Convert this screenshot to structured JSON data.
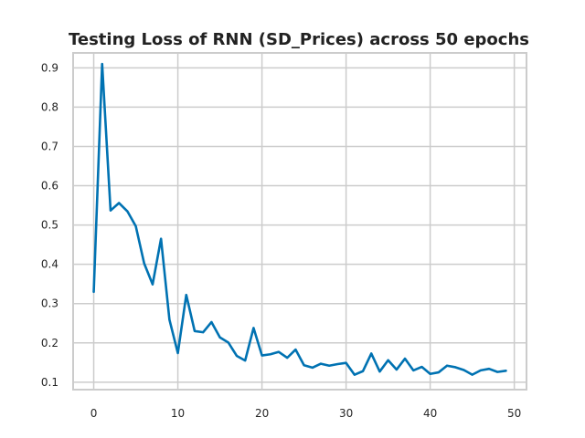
{
  "chart_data": {
    "type": "line",
    "title": "Testing Loss of RNN (SD_Prices) across 50 epochs",
    "xlabel": "",
    "ylabel": "",
    "xlim": [
      -2.45,
      51.45
    ],
    "ylim": [
      0.081,
      0.938
    ],
    "xticks": [
      0,
      10,
      20,
      30,
      40,
      50
    ],
    "yticks": [
      0.1,
      0.2,
      0.3,
      0.4,
      0.5,
      0.6,
      0.7,
      0.8,
      0.9
    ],
    "grid": true,
    "legend": "none",
    "line_color": "#0072b2",
    "series": [
      {
        "x": [
          0,
          1,
          2,
          3,
          4,
          5,
          6,
          7,
          8,
          9,
          10,
          11,
          12,
          13,
          14,
          15,
          16,
          17,
          18,
          19,
          20,
          21,
          22,
          23,
          24,
          25,
          26,
          27,
          28,
          29,
          30,
          31,
          32,
          33,
          34,
          35,
          36,
          37,
          38,
          39,
          40,
          41,
          42,
          43,
          44,
          45,
          46,
          47,
          48,
          49
        ],
        "values": [
          0.33,
          0.91,
          0.537,
          0.556,
          0.535,
          0.497,
          0.402,
          0.349,
          0.465,
          0.259,
          0.174,
          0.322,
          0.23,
          0.227,
          0.253,
          0.214,
          0.201,
          0.167,
          0.155,
          0.238,
          0.168,
          0.171,
          0.177,
          0.162,
          0.183,
          0.143,
          0.137,
          0.147,
          0.142,
          0.146,
          0.149,
          0.119,
          0.128,
          0.173,
          0.127,
          0.156,
          0.132,
          0.16,
          0.13,
          0.139,
          0.121,
          0.125,
          0.142,
          0.138,
          0.131,
          0.119,
          0.13,
          0.134,
          0.126,
          0.129
        ]
      }
    ]
  }
}
